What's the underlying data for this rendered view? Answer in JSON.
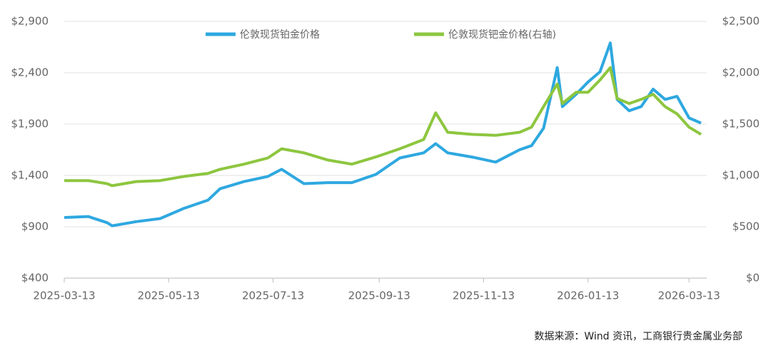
{
  "chart_data": {
    "type": "line",
    "source": "数据来源：Wind 资讯，工商银行贵金属业务部",
    "x": [
      "2025-03-13",
      "2025-03-27",
      "2025-04-07",
      "2025-04-10",
      "2025-04-24",
      "2025-05-08",
      "2025-05-22",
      "2025-06-05",
      "2025-06-12",
      "2025-06-26",
      "2025-07-10",
      "2025-07-18",
      "2025-07-31",
      "2025-08-14",
      "2025-08-28",
      "2025-09-11",
      "2025-09-25",
      "2025-10-09",
      "2025-10-16",
      "2025-10-23",
      "2025-11-06",
      "2025-11-20",
      "2025-12-04",
      "2025-12-11",
      "2025-12-18",
      "2025-12-26",
      "2025-12-29",
      "2026-01-06",
      "2026-01-13",
      "2026-01-20",
      "2026-01-26",
      "2026-01-30",
      "2026-02-06",
      "2026-02-13",
      "2026-02-20",
      "2026-02-27",
      "2026-03-06",
      "2026-03-13",
      "2026-03-20"
    ],
    "series": [
      {
        "name": "伦敦现货铂金价格",
        "color": "#2ea8e0",
        "axis": "y",
        "values": [
          990,
          1000,
          940,
          910,
          950,
          980,
          1080,
          1160,
          1270,
          1340,
          1390,
          1460,
          1320,
          1330,
          1330,
          1410,
          1570,
          1620,
          1710,
          1620,
          1580,
          1530,
          1650,
          1690,
          1860,
          2450,
          2070,
          2190,
          2310,
          2410,
          2690,
          2140,
          2030,
          2070,
          2240,
          2140,
          2170,
          1960,
          1910
        ]
      },
      {
        "name": "伦敦现货钯金价格(右轴)",
        "color": "#8dc63f",
        "axis": "y2",
        "values": [
          950,
          950,
          920,
          900,
          940,
          950,
          990,
          1020,
          1060,
          1110,
          1170,
          1260,
          1220,
          1150,
          1110,
          1180,
          1260,
          1350,
          1610,
          1420,
          1400,
          1390,
          1420,
          1470,
          1670,
          1890,
          1700,
          1810,
          1810,
          1930,
          2050,
          1750,
          1700,
          1740,
          1790,
          1670,
          1600,
          1470,
          1400
        ]
      }
    ],
    "xlim": [
      "2025-03-13",
      "2026-03-20"
    ],
    "xticks": [
      "2025-03-13",
      "2025-05-13",
      "2025-07-13",
      "2025-09-13",
      "2025-11-13",
      "2026-01-13",
      "2026-03-13"
    ],
    "ylim": [
      400,
      2900
    ],
    "yticks": [
      {
        "value": 400,
        "label": "$400"
      },
      {
        "value": 900,
        "label": "$900"
      },
      {
        "value": 1400,
        "label": "$1,400"
      },
      {
        "value": 1900,
        "label": "$1,900"
      },
      {
        "value": 2400,
        "label": "$2,400"
      },
      {
        "value": 2900,
        "label": "$2,900"
      }
    ],
    "y2lim": [
      0,
      2500
    ],
    "y2ticks": [
      {
        "value": 0,
        "label": "$0"
      },
      {
        "value": 500,
        "label": "$500"
      },
      {
        "value": 1000,
        "label": "$1,000"
      },
      {
        "value": 1500,
        "label": "$1,500"
      },
      {
        "value": 2000,
        "label": "$2,000"
      },
      {
        "value": 2500,
        "label": "$2,500"
      }
    ],
    "grid": true
  }
}
